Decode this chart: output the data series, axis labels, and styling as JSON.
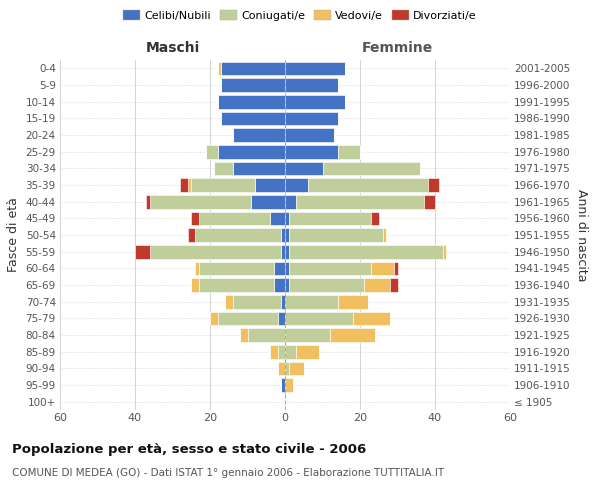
{
  "age_groups": [
    "100+",
    "95-99",
    "90-94",
    "85-89",
    "80-84",
    "75-79",
    "70-74",
    "65-69",
    "60-64",
    "55-59",
    "50-54",
    "45-49",
    "40-44",
    "35-39",
    "30-34",
    "25-29",
    "20-24",
    "15-19",
    "10-14",
    "5-9",
    "0-4"
  ],
  "birth_years": [
    "≤ 1905",
    "1906-1910",
    "1911-1915",
    "1916-1920",
    "1921-1925",
    "1926-1930",
    "1931-1935",
    "1936-1940",
    "1941-1945",
    "1946-1950",
    "1951-1955",
    "1956-1960",
    "1961-1965",
    "1966-1970",
    "1971-1975",
    "1976-1980",
    "1981-1985",
    "1986-1990",
    "1991-1995",
    "1996-2000",
    "2001-2005"
  ],
  "colors": {
    "celibe": "#4472C4",
    "coniugato": "#BFCE9A",
    "vedovo": "#F0C060",
    "divorziato": "#C0392B"
  },
  "maschi": {
    "celibe": [
      0,
      1,
      0,
      0,
      0,
      2,
      1,
      3,
      3,
      1,
      1,
      4,
      9,
      8,
      14,
      18,
      14,
      17,
      18,
      17,
      17
    ],
    "coniugato": [
      0,
      0,
      0,
      2,
      10,
      16,
      13,
      20,
      20,
      35,
      23,
      19,
      27,
      17,
      5,
      3,
      0,
      0,
      0,
      0,
      0
    ],
    "vedovo": [
      0,
      0,
      2,
      2,
      2,
      2,
      2,
      2,
      1,
      0,
      0,
      0,
      0,
      1,
      0,
      0,
      0,
      0,
      0,
      0,
      1
    ],
    "divorziato": [
      0,
      0,
      0,
      0,
      0,
      0,
      0,
      0,
      0,
      4,
      2,
      2,
      1,
      2,
      0,
      0,
      0,
      0,
      0,
      0,
      0
    ]
  },
  "femmine": {
    "celibe": [
      0,
      0,
      0,
      0,
      0,
      0,
      0,
      1,
      1,
      1,
      1,
      1,
      3,
      6,
      10,
      14,
      13,
      14,
      16,
      14,
      16
    ],
    "coniugato": [
      0,
      0,
      1,
      3,
      12,
      18,
      14,
      20,
      22,
      41,
      25,
      22,
      34,
      32,
      26,
      6,
      0,
      0,
      0,
      0,
      0
    ],
    "vedovo": [
      0,
      2,
      4,
      6,
      12,
      10,
      8,
      7,
      6,
      1,
      1,
      0,
      0,
      0,
      0,
      0,
      0,
      0,
      0,
      0,
      0
    ],
    "divorziato": [
      0,
      0,
      0,
      0,
      0,
      0,
      0,
      2,
      1,
      0,
      0,
      2,
      3,
      3,
      0,
      0,
      0,
      0,
      0,
      0,
      0
    ]
  },
  "xlim": 60,
  "title": "Popolazione per età, sesso e stato civile - 2006",
  "subtitle": "COMUNE DI MEDEA (GO) - Dati ISTAT 1° gennaio 2006 - Elaborazione TUTTITALIA.IT",
  "ylabel_left": "Fasce di età",
  "ylabel_right": "Anni di nascita",
  "xlabel_left": "Maschi",
  "xlabel_right": "Femmine"
}
